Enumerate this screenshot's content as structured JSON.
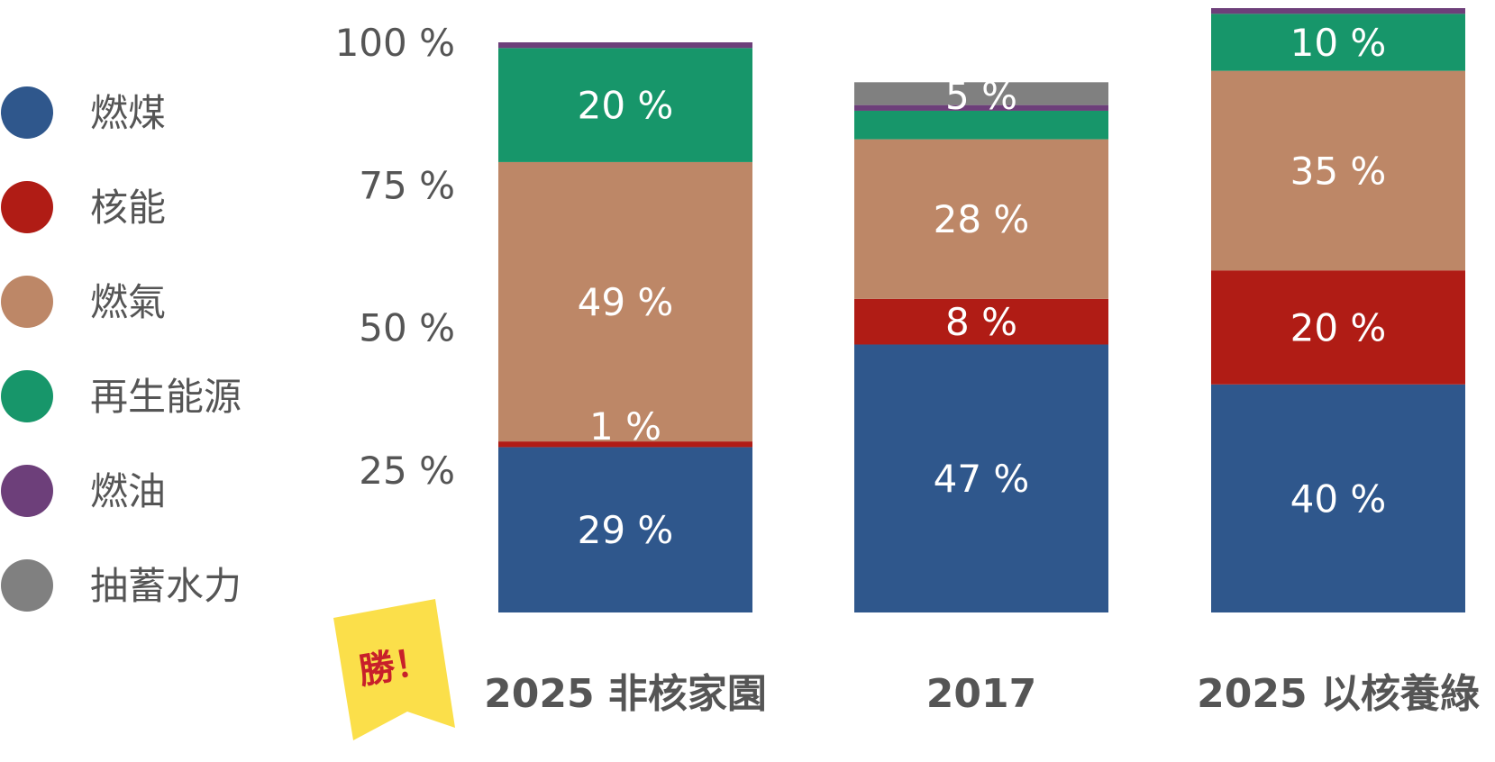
{
  "chart_data": {
    "type": "bar",
    "stacked": true,
    "categories": [
      "2025 非核家園",
      "2017",
      "2025 以核養綠"
    ],
    "series": [
      {
        "name": "燃煤",
        "color": "#2f578c",
        "values": [
          29,
          47,
          40
        ],
        "labels": [
          "29 %",
          "47 %",
          "40 %"
        ]
      },
      {
        "name": "核能",
        "color": "#b01c15",
        "values": [
          1,
          8,
          20
        ],
        "labels": [
          "1 %",
          "8 %",
          "20 %"
        ]
      },
      {
        "name": "燃氣",
        "color": "#bd8767",
        "values": [
          49,
          28,
          35
        ],
        "labels": [
          "49 %",
          "28 %",
          "35 %"
        ]
      },
      {
        "name": "再生能源",
        "color": "#17966a",
        "values": [
          20,
          5,
          10
        ],
        "labels": [
          "20 %",
          "5 %",
          "10 %"
        ]
      },
      {
        "name": "燃油",
        "color": "#6d3f7a",
        "values": [
          1,
          1,
          1
        ],
        "labels": [
          "",
          "",
          ""
        ]
      },
      {
        "name": "抽蓄水力",
        "color": "#808080",
        "values": [
          0,
          4,
          0
        ],
        "labels": [
          "",
          "",
          ""
        ]
      }
    ],
    "yticks": [
      "25 %",
      "50 %",
      "75 %",
      "100 %"
    ],
    "ytick_values": [
      25,
      50,
      75,
      100
    ],
    "ylim": [
      0,
      105
    ],
    "legend_position": "left",
    "grid": false,
    "badge": {
      "text": "勝！",
      "category_index": 0,
      "fill": "#fbdf4a",
      "text_color": "#c8202a"
    }
  }
}
